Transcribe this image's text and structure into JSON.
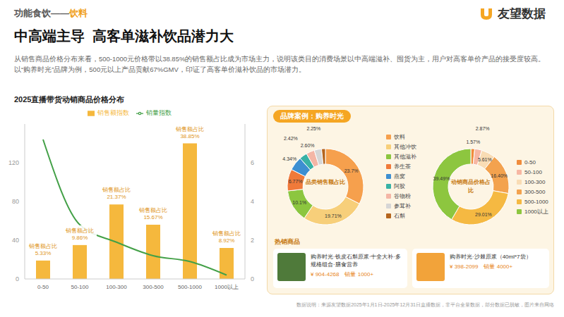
{
  "header": {
    "section": "功能食饮——",
    "section_highlight": "饮料",
    "logo": "友望数据",
    "title": "中高端主导  高客单滋补饮品潜力大",
    "description": "从销售商品价格分布来看，500-1000元价格带以38.85%的销售额占比成为市场主力，说明该类目的消费场景以中高端滋补、囤货为主，用户对高客单价产品的接受度较高。以“购养时光”品牌为例，500元以上产品贡献67%GMV，印证了高客单价滋补饮品的市场潜力。"
  },
  "chart_data": [
    {
      "type": "bar",
      "title": "2025直播带货动销商品价格分布",
      "categories": [
        "0-50",
        "50-100",
        "100-300",
        "300-500",
        "500-1000",
        "1000以上"
      ],
      "series": [
        {
          "name": "销售额指数",
          "type": "bar",
          "color": "#f5b83d",
          "values": [
            19,
            35,
            77,
            56,
            140,
            32
          ]
        },
        {
          "name": "销量指数",
          "type": "line",
          "axis": "y2",
          "color": "#43a047",
          "line_style": "solid",
          "marker": "none",
          "values": [
            7.2,
            2.8,
            1.9,
            1.2,
            0.9,
            0.2
          ]
        }
      ],
      "annotations": {
        "title": "销售额占比",
        "labels": [
          "5.33%",
          "9.86%",
          "21.37%",
          "15.67%",
          "38.85%",
          "8.92%"
        ]
      },
      "ylim": [
        0,
        160
      ],
      "yticks": [
        0,
        40,
        80,
        120
      ],
      "y2lim": [
        0,
        8
      ],
      "y2ticks": [
        0,
        2,
        4,
        6
      ],
      "grid": false,
      "legend": "top"
    },
    {
      "type": "pie",
      "center_label": "品类销售额占比",
      "legend": "right",
      "data_labels": true,
      "categories": [
        "饮料",
        "其他冲饮",
        "其他滋补",
        "养生茶",
        "燕窝",
        "阿胶",
        "谷物粉",
        "参茸补",
        "石斛"
      ],
      "values": [
        23.7,
        19.71,
        10.1,
        6.77,
        4.34,
        2.42,
        2.6,
        2.25,
        1.2
      ],
      "value_labels": [
        "23.7%",
        "19.71%",
        "10.1%",
        "6.77%",
        "4.34%",
        "2.42%",
        "2.60%",
        "2.25%",
        null
      ],
      "colors": [
        "#f6a04d",
        "#f7cf7a",
        "#8cc63f",
        "#f07a3a",
        "#3d8fd1",
        "#38b2a5",
        "#f4b6a6",
        "#d6d6d6",
        "#b5651d"
      ]
    },
    {
      "type": "pie",
      "center_label": "动销商品价格占比",
      "legend": "right",
      "data_labels": true,
      "categories": [
        "0-50",
        "50-100",
        "100-300",
        "300-500",
        "500-1000",
        "1000以上"
      ],
      "values": [
        1.57,
        2.87,
        5.61,
        16.4,
        29.01,
        39.49
      ],
      "value_labels": [
        "1.57%",
        "2.87%",
        "5.61%",
        "16.40%",
        "29.01%",
        "39.49%"
      ],
      "colors": [
        "#f08c3c",
        "#f7b7a3",
        "#f9dcb4",
        "#f3a24e",
        "#f5b942",
        "#8dc63f"
      ]
    }
  ],
  "brand_panel": {
    "title": "品牌案例：购养时光",
    "hot_title": "热销商品",
    "products": [
      {
        "name": "购养时光·铁皮石斛原浆·十全大补·多规格组合·膳食营养",
        "price": "¥ 904-4268",
        "sales": "销量 1000+",
        "color": "#4f7a3a"
      },
      {
        "name": "购养时光·沙棘原浆（40ml*7袋）",
        "price": "¥ 398-2099",
        "sales": "销量 4000+",
        "color": "#f2a33a"
      }
    ]
  },
  "footer": "数据说明：来源友望数据2025年1月1日-2025年12月31日直播数据，非平台全量数据，部分数据已脱敏，图片来自网络"
}
